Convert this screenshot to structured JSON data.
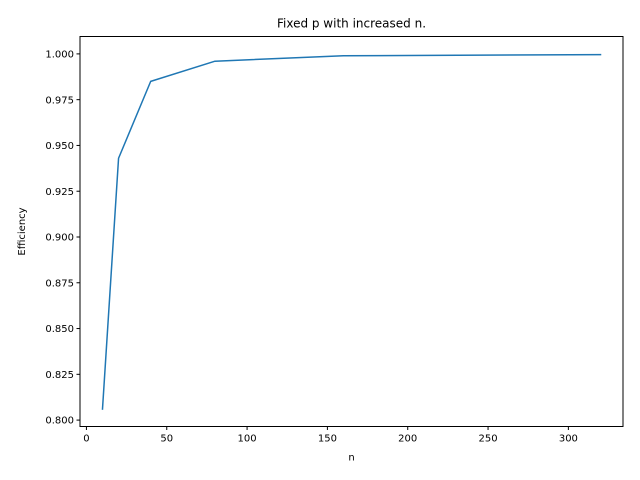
{
  "chart_data": {
    "type": "line",
    "title": "Fixed p with increased n.",
    "xlabel": "n",
    "ylabel": "Efficiency",
    "xlim": [
      -4,
      334
    ],
    "ylim": [
      0.7965,
      1.0095
    ],
    "x_ticks": [
      0,
      50,
      100,
      150,
      200,
      250,
      300
    ],
    "x_tick_labels": [
      "0",
      "50",
      "100",
      "150",
      "200",
      "250",
      "300"
    ],
    "y_ticks": [
      0.8,
      0.825,
      0.85,
      0.875,
      0.9,
      0.925,
      0.95,
      0.975,
      1.0
    ],
    "y_tick_labels": [
      "0.800",
      "0.825",
      "0.850",
      "0.875",
      "0.900",
      "0.925",
      "0.950",
      "0.975",
      "1.000"
    ],
    "grid": false,
    "series": [
      {
        "color": "#1f77b4",
        "x": [
          10,
          20,
          40,
          80,
          160,
          320
        ],
        "y": [
          0.806,
          0.943,
          0.985,
          0.996,
          0.999,
          0.9996
        ]
      }
    ]
  }
}
